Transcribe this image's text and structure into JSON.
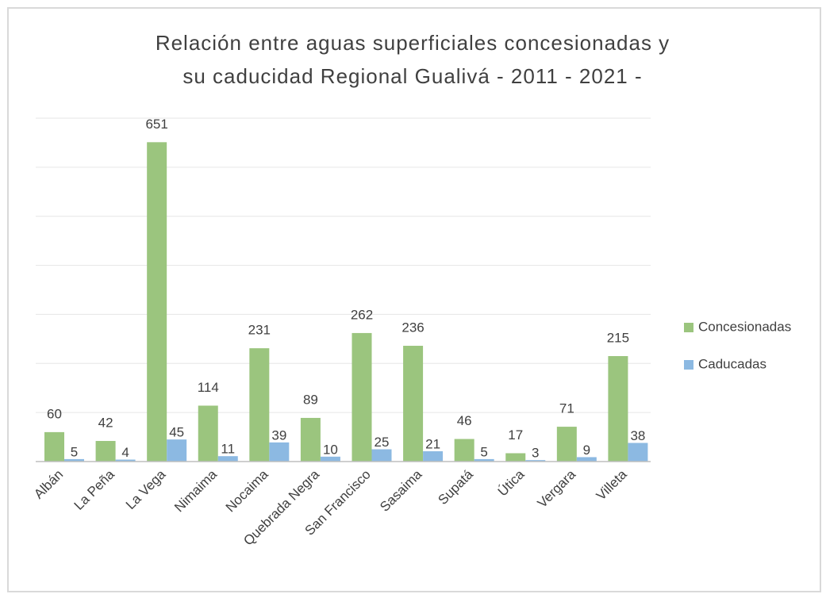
{
  "chart_data": {
    "type": "bar",
    "title": [
      "Relación entre aguas superficiales concesionadas y",
      "su caducidad Regional Gualivá - 2011 - 2021 -"
    ],
    "categories": [
      "Albán",
      "La Peña",
      "La Vega",
      "Nimaima",
      "Nocaima",
      "Quebrada Negra",
      "San Francisco",
      "Sasaima",
      "Supatá",
      "Útica",
      "Vergara",
      "Villeta"
    ],
    "series": [
      {
        "name": "Concesionadas",
        "color": "#9bc57e",
        "values": [
          60,
          42,
          651,
          114,
          231,
          89,
          262,
          236,
          46,
          17,
          71,
          215
        ]
      },
      {
        "name": "Caducadas",
        "color": "#8cb9e2",
        "values": [
          5,
          4,
          45,
          11,
          39,
          10,
          25,
          21,
          5,
          3,
          9,
          38
        ]
      }
    ],
    "ylim": [
      0,
      700
    ],
    "yticks": [
      0,
      100,
      200,
      300,
      400,
      500,
      600,
      700
    ],
    "grid": true,
    "legend": "right"
  }
}
